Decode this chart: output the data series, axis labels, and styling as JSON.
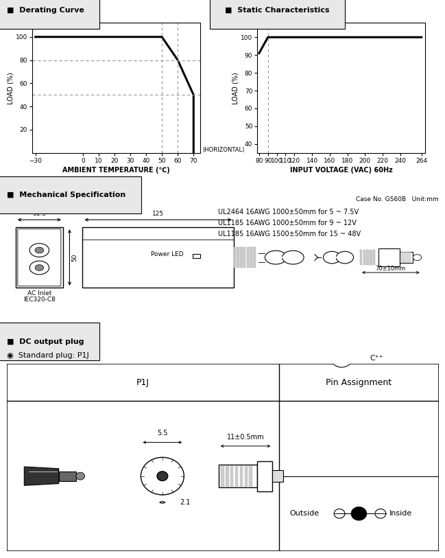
{
  "bg_color": "#ffffff",
  "section1_title": "■  Derating Curve",
  "section2_title": "■  Static Characteristics",
  "derating": {
    "x": [
      -30,
      50,
      60,
      70,
      70
    ],
    "y": [
      100,
      100,
      80,
      50,
      0
    ],
    "xlim": [
      -32,
      74
    ],
    "ylim": [
      0,
      112
    ],
    "xticks": [
      -30,
      0,
      10,
      20,
      30,
      40,
      50,
      60,
      70
    ],
    "yticks": [
      20,
      40,
      60,
      80,
      100
    ],
    "xlabel": "AMBIENT TEMPERATURE (℃)",
    "ylabel": "LOAD (%)",
    "hlines": [
      80,
      50
    ],
    "vlines": [
      50,
      60
    ],
    "horiz_label": "(HORIZONTAL)"
  },
  "static": {
    "x": [
      80,
      90,
      264
    ],
    "y": [
      91,
      100,
      100
    ],
    "xlim": [
      78,
      268
    ],
    "ylim": [
      35,
      108
    ],
    "xticks": [
      80,
      90,
      100,
      110,
      120,
      140,
      160,
      180,
      200,
      220,
      240,
      264
    ],
    "yticks": [
      40,
      50,
      60,
      70,
      80,
      90,
      100
    ],
    "xlabel": "INPUT VOLTAGE (VAC) 60Hz",
    "ylabel": "LOAD (%)",
    "vlines": [
      90
    ]
  },
  "mech_title": "■  Mechanical Specification",
  "mech_case": "Case No. GS60B   Unit:mm",
  "mech_cables": [
    "UL2464 16AWG 1000±50mm for 5 ~ 7.5V",
    "UL1185 16AWG 1000±50mm for 9 ~ 12V",
    "UL1185 16AWG 1500±50mm for 15 ~ 48V"
  ],
  "mech_dim_w": "31.5",
  "mech_dim_body": "125",
  "mech_dim_h": "50",
  "mech_dim_end": "70±10mm",
  "mech_label_inlet": "AC Inlet",
  "mech_label_iec": "IEC320-C8",
  "mech_label_led": "Power LED",
  "dc_title": "■  DC output plug",
  "dc_subtitle": "◉  Standard plug: P1J",
  "table_col1": "P1J",
  "table_col2": "Pin Assignment",
  "dim_55": "5.5",
  "dim_21": "2.1",
  "dim_11": "11±0.5mm",
  "pin_top": "C⁺⁺",
  "pin_outside": "Outside",
  "pin_inside": "Inside"
}
